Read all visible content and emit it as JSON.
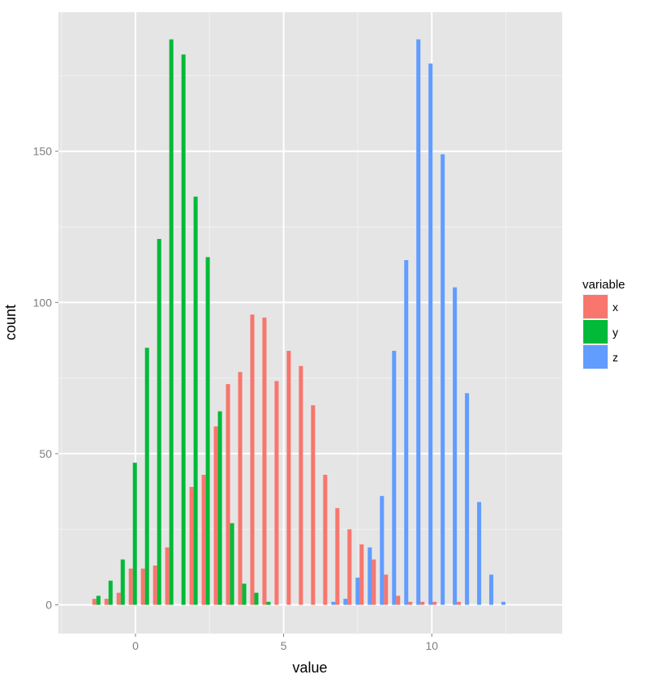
{
  "chart_data": {
    "type": "bar",
    "xlabel": "value",
    "ylabel": "count",
    "xlim": [
      -2.6,
      14.4
    ],
    "ylim": [
      -9.5,
      196
    ],
    "x_ticks": [
      0,
      5,
      10
    ],
    "y_ticks": [
      0,
      50,
      100,
      150
    ],
    "grid": true,
    "legend": {
      "title": "variable",
      "placement": "right"
    },
    "bin_width": 0.412,
    "series": [
      {
        "name": "x",
        "color": "#F8766D",
        "points": [
          {
            "x": -1.25,
            "y": 2
          },
          {
            "x": -0.84,
            "y": 2
          },
          {
            "x": -0.43,
            "y": 4
          },
          {
            "x": -0.02,
            "y": 12
          },
          {
            "x": 0.39,
            "y": 12
          },
          {
            "x": 0.8,
            "y": 13
          },
          {
            "x": 1.21,
            "y": 19
          },
          {
            "x": 1.62,
            "y": 0
          },
          {
            "x": 2.03,
            "y": 39
          },
          {
            "x": 2.44,
            "y": 43
          },
          {
            "x": 2.85,
            "y": 59
          },
          {
            "x": 3.26,
            "y": 73
          },
          {
            "x": 3.67,
            "y": 77
          },
          {
            "x": 4.08,
            "y": 96
          },
          {
            "x": 4.49,
            "y": 95
          },
          {
            "x": 4.9,
            "y": 74
          },
          {
            "x": 5.31,
            "y": 84
          },
          {
            "x": 5.72,
            "y": 79
          },
          {
            "x": 6.13,
            "y": 66
          },
          {
            "x": 6.54,
            "y": 43
          },
          {
            "x": 6.95,
            "y": 32
          },
          {
            "x": 7.36,
            "y": 25
          },
          {
            "x": 7.77,
            "y": 20
          },
          {
            "x": 8.18,
            "y": 15
          },
          {
            "x": 8.59,
            "y": 10
          },
          {
            "x": 9.0,
            "y": 3
          },
          {
            "x": 9.41,
            "y": 1
          },
          {
            "x": 9.82,
            "y": 1
          },
          {
            "x": 10.23,
            "y": 1
          },
          {
            "x": 10.64,
            "y": 0
          },
          {
            "x": 11.05,
            "y": 1
          }
        ]
      },
      {
        "name": "y",
        "color": "#00BA38",
        "points": [
          {
            "x": -1.25,
            "y": 3
          },
          {
            "x": -0.84,
            "y": 8
          },
          {
            "x": -0.43,
            "y": 15
          },
          {
            "x": -0.02,
            "y": 47
          },
          {
            "x": 0.39,
            "y": 85
          },
          {
            "x": 0.8,
            "y": 121
          },
          {
            "x": 1.21,
            "y": 187
          },
          {
            "x": 1.62,
            "y": 182
          },
          {
            "x": 2.03,
            "y": 135
          },
          {
            "x": 2.44,
            "y": 115
          },
          {
            "x": 2.85,
            "y": 64
          },
          {
            "x": 3.26,
            "y": 27
          },
          {
            "x": 3.67,
            "y": 7
          },
          {
            "x": 4.08,
            "y": 4
          },
          {
            "x": 4.49,
            "y": 1
          }
        ]
      },
      {
        "name": "z",
        "color": "#619CFF",
        "points": [
          {
            "x": 6.54,
            "y": 1
          },
          {
            "x": 6.95,
            "y": 2
          },
          {
            "x": 7.36,
            "y": 9
          },
          {
            "x": 7.77,
            "y": 19
          },
          {
            "x": 8.18,
            "y": 36
          },
          {
            "x": 8.59,
            "y": 84
          },
          {
            "x": 9.0,
            "y": 114
          },
          {
            "x": 9.41,
            "y": 187
          },
          {
            "x": 9.82,
            "y": 179
          },
          {
            "x": 10.23,
            "y": 149
          },
          {
            "x": 10.64,
            "y": 105
          },
          {
            "x": 11.05,
            "y": 70
          },
          {
            "x": 11.46,
            "y": 34
          },
          {
            "x": 11.87,
            "y": 10
          },
          {
            "x": 12.28,
            "y": 1
          }
        ]
      }
    ]
  }
}
